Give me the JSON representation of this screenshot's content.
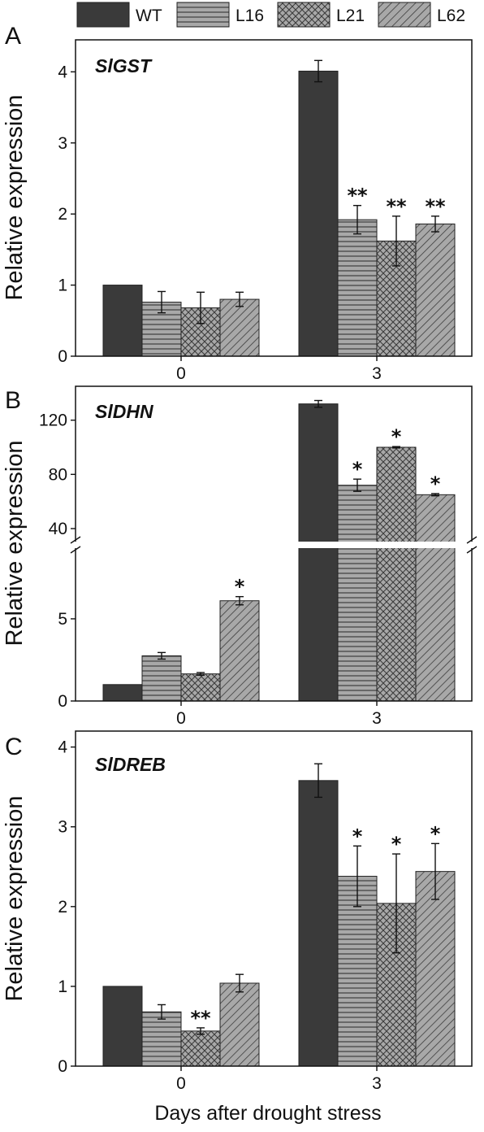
{
  "legend": [
    {
      "name": "WT",
      "pattern": "solid"
    },
    {
      "name": "L16",
      "pattern": "horizontal-lines"
    },
    {
      "name": "L21",
      "pattern": "crosshatch"
    },
    {
      "name": "L62",
      "pattern": "diagonal-lines"
    }
  ],
  "colors": {
    "wt_fill": "#3a3a3a",
    "pattern_fill": "#a8a8a8",
    "pattern_stroke": "#3c3c3c",
    "axis": "#111111"
  },
  "xlabel": "Days after drought stress",
  "chart_data": [
    {
      "type": "bar",
      "panel": "A",
      "title": "SlGST",
      "ylabel": "Relative expression",
      "categories": [
        "0",
        "3"
      ],
      "ylim": [
        0,
        4.45
      ],
      "yticks": [
        0,
        1,
        2,
        3,
        4
      ],
      "series": [
        {
          "name": "WT",
          "values": [
            1.0,
            4.01
          ],
          "errors": [
            0,
            0.15
          ],
          "marks": [
            "",
            ""
          ]
        },
        {
          "name": "L16",
          "values": [
            0.76,
            1.92
          ],
          "errors": [
            0.15,
            0.2
          ],
          "marks": [
            "",
            "**"
          ]
        },
        {
          "name": "L21",
          "values": [
            0.68,
            1.62
          ],
          "errors": [
            0.22,
            0.35
          ],
          "marks": [
            "",
            "**"
          ]
        },
        {
          "name": "L62",
          "values": [
            0.8,
            1.86
          ],
          "errors": [
            0.1,
            0.11
          ],
          "marks": [
            "",
            "**"
          ]
        }
      ]
    },
    {
      "type": "bar",
      "panel": "B",
      "title": "SlDHN",
      "ylabel": "Relative expression",
      "categories": [
        "0",
        "3"
      ],
      "axis_break": true,
      "ylim_lower": [
        0,
        9.5
      ],
      "yticks_lower": [
        0,
        5
      ],
      "ylim_upper": [
        28,
        145
      ],
      "yticks_upper": [
        40,
        80,
        120
      ],
      "series": [
        {
          "name": "WT",
          "values": [
            1.0,
            132
          ],
          "errors": [
            0,
            2.5
          ],
          "marks": [
            "",
            ""
          ]
        },
        {
          "name": "L16",
          "values": [
            2.75,
            72
          ],
          "errors": [
            0.2,
            4.5
          ],
          "marks": [
            "",
            "*"
          ]
        },
        {
          "name": "L21",
          "values": [
            1.65,
            100
          ],
          "errors": [
            0.08,
            0.5
          ],
          "marks": [
            "",
            "*"
          ]
        },
        {
          "name": "L62",
          "values": [
            6.1,
            65
          ],
          "errors": [
            0.25,
            0.8
          ],
          "marks": [
            "*",
            "*"
          ]
        }
      ]
    },
    {
      "type": "bar",
      "panel": "C",
      "title": "SlDREB",
      "ylabel": "Relative expression",
      "categories": [
        "0",
        "3"
      ],
      "ylim": [
        0,
        4.2
      ],
      "yticks": [
        0,
        1,
        2,
        3,
        4
      ],
      "series": [
        {
          "name": "WT",
          "values": [
            1.0,
            3.58
          ],
          "errors": [
            0,
            0.21
          ],
          "marks": [
            "",
            ""
          ]
        },
        {
          "name": "L16",
          "values": [
            0.68,
            2.38
          ],
          "errors": [
            0.09,
            0.38
          ],
          "marks": [
            "",
            "*"
          ]
        },
        {
          "name": "L21",
          "values": [
            0.44,
            2.04
          ],
          "errors": [
            0.04,
            0.62
          ],
          "marks": [
            "**",
            "*"
          ]
        },
        {
          "name": "L62",
          "values": [
            1.04,
            2.44
          ],
          "errors": [
            0.11,
            0.35
          ],
          "marks": [
            "",
            "*"
          ]
        }
      ]
    }
  ]
}
